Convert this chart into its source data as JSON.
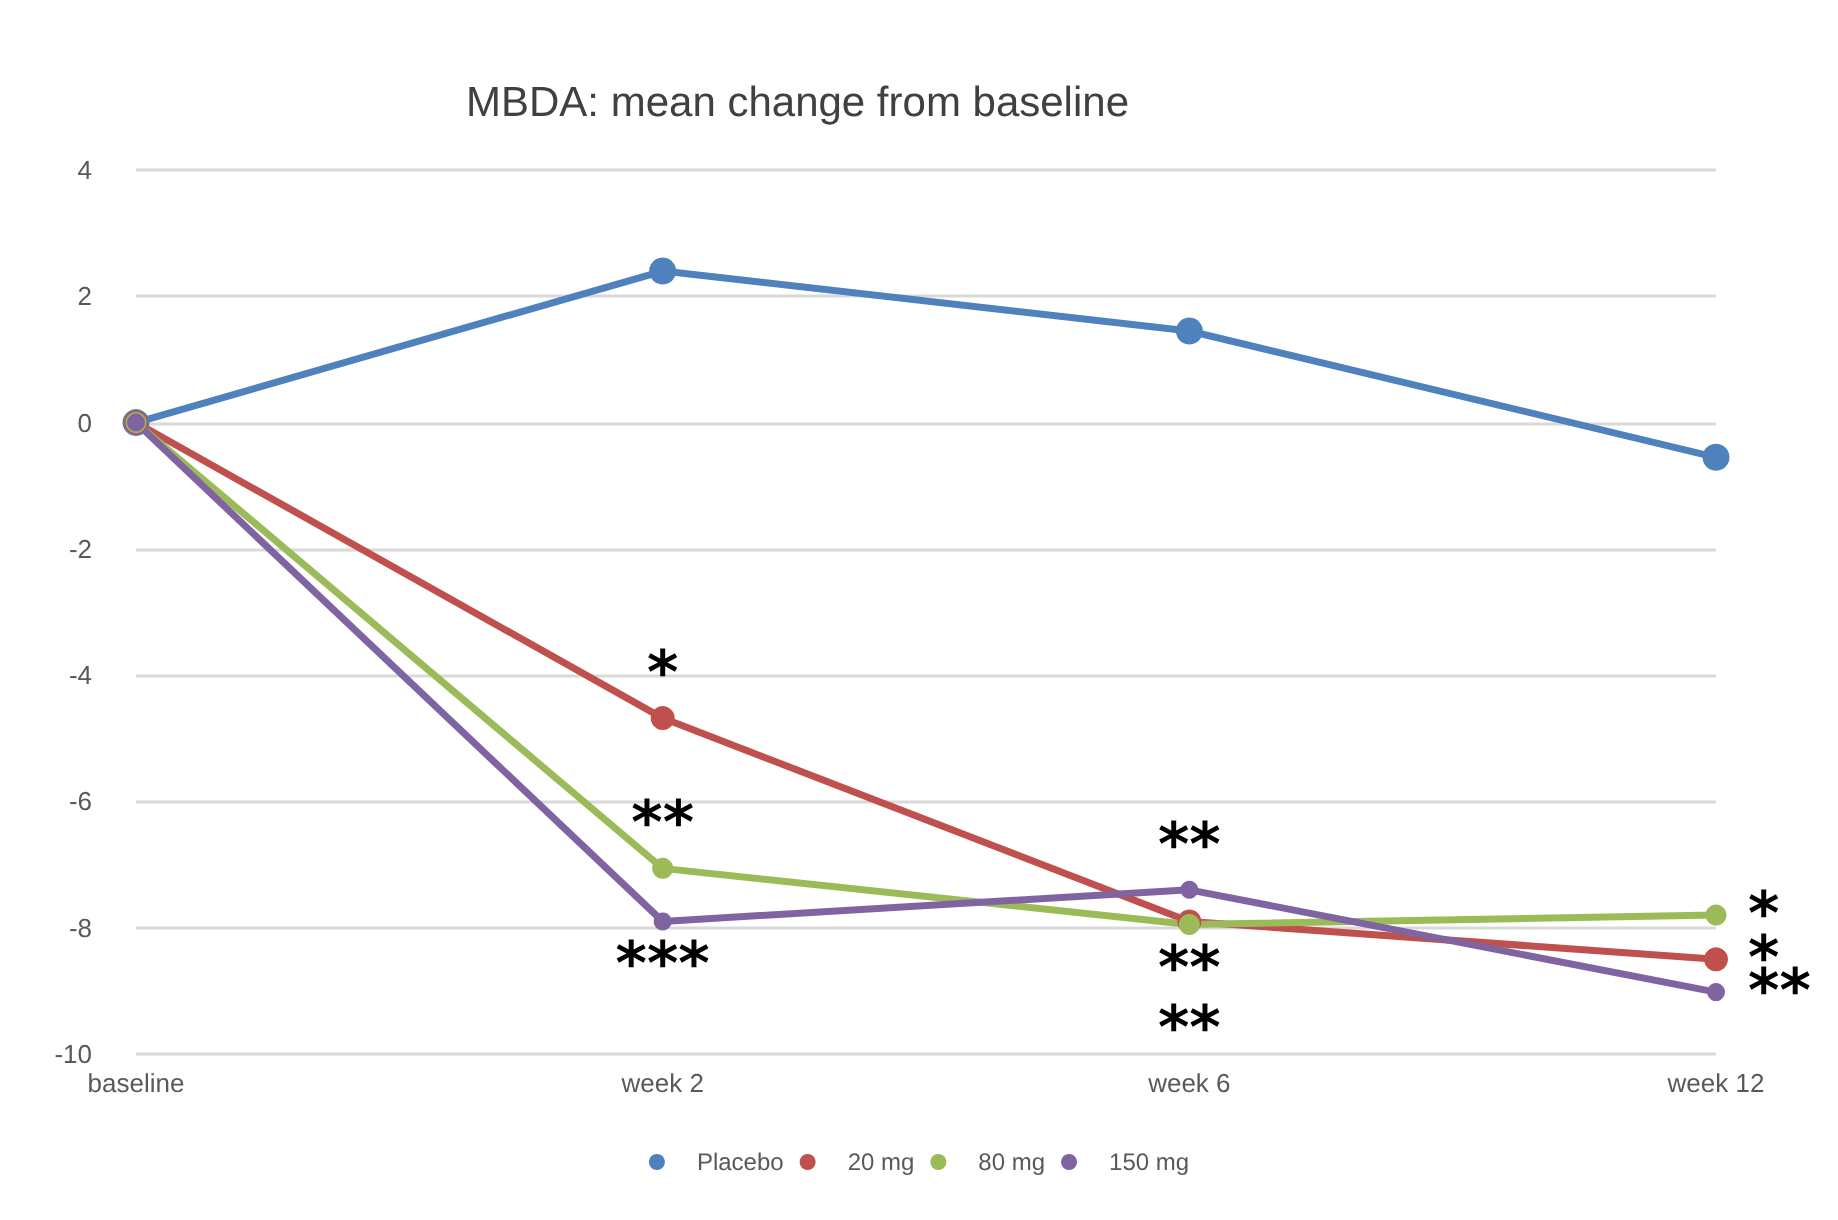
{
  "chart_data": {
    "type": "line",
    "title": "MBDA: mean change from baseline",
    "categories": [
      "baseline",
      "week 2",
      "week 6",
      "week 12"
    ],
    "series": [
      {
        "name": "Placebo",
        "color": "#4f81bd",
        "values": [
          0,
          2.4,
          1.45,
          -0.55
        ]
      },
      {
        "name": "20 mg",
        "color": "#c0504d",
        "values": [
          0,
          -4.68,
          -7.9,
          -8.5
        ]
      },
      {
        "name": "80 mg",
        "color": "#9bbb59",
        "values": [
          0,
          -7.06,
          -7.95,
          -7.8
        ]
      },
      {
        "name": "150 mg",
        "color": "#8064a2",
        "values": [
          0,
          -7.9,
          -7.4,
          -9.02
        ]
      }
    ],
    "ylim": [
      -10,
      4
    ],
    "yticks": [
      -10,
      -8,
      -6,
      -4,
      -2,
      0,
      2,
      4
    ],
    "grid": "y",
    "legend": "bottom",
    "marker": "circle",
    "line_style": "solid",
    "annotations": [
      {
        "text": "*",
        "x": "week 2",
        "y": -4.68
      },
      {
        "text": "**",
        "x": "week 2",
        "y": -7.06
      },
      {
        "text": "***",
        "x": "week 2",
        "y": -7.9
      },
      {
        "text": "**",
        "x": "week 6",
        "y": -7.4
      },
      {
        "text": "**",
        "x": "week 6",
        "y": -7.95
      },
      {
        "text": "**",
        "x": "week 6",
        "y": -7.95
      },
      {
        "text": "*",
        "x": "week 12",
        "y": -7.8
      },
      {
        "text": "*",
        "x": "week 12",
        "y": -8.5
      },
      {
        "text": "**",
        "x": "week 12",
        "y": -9.02
      }
    ]
  }
}
